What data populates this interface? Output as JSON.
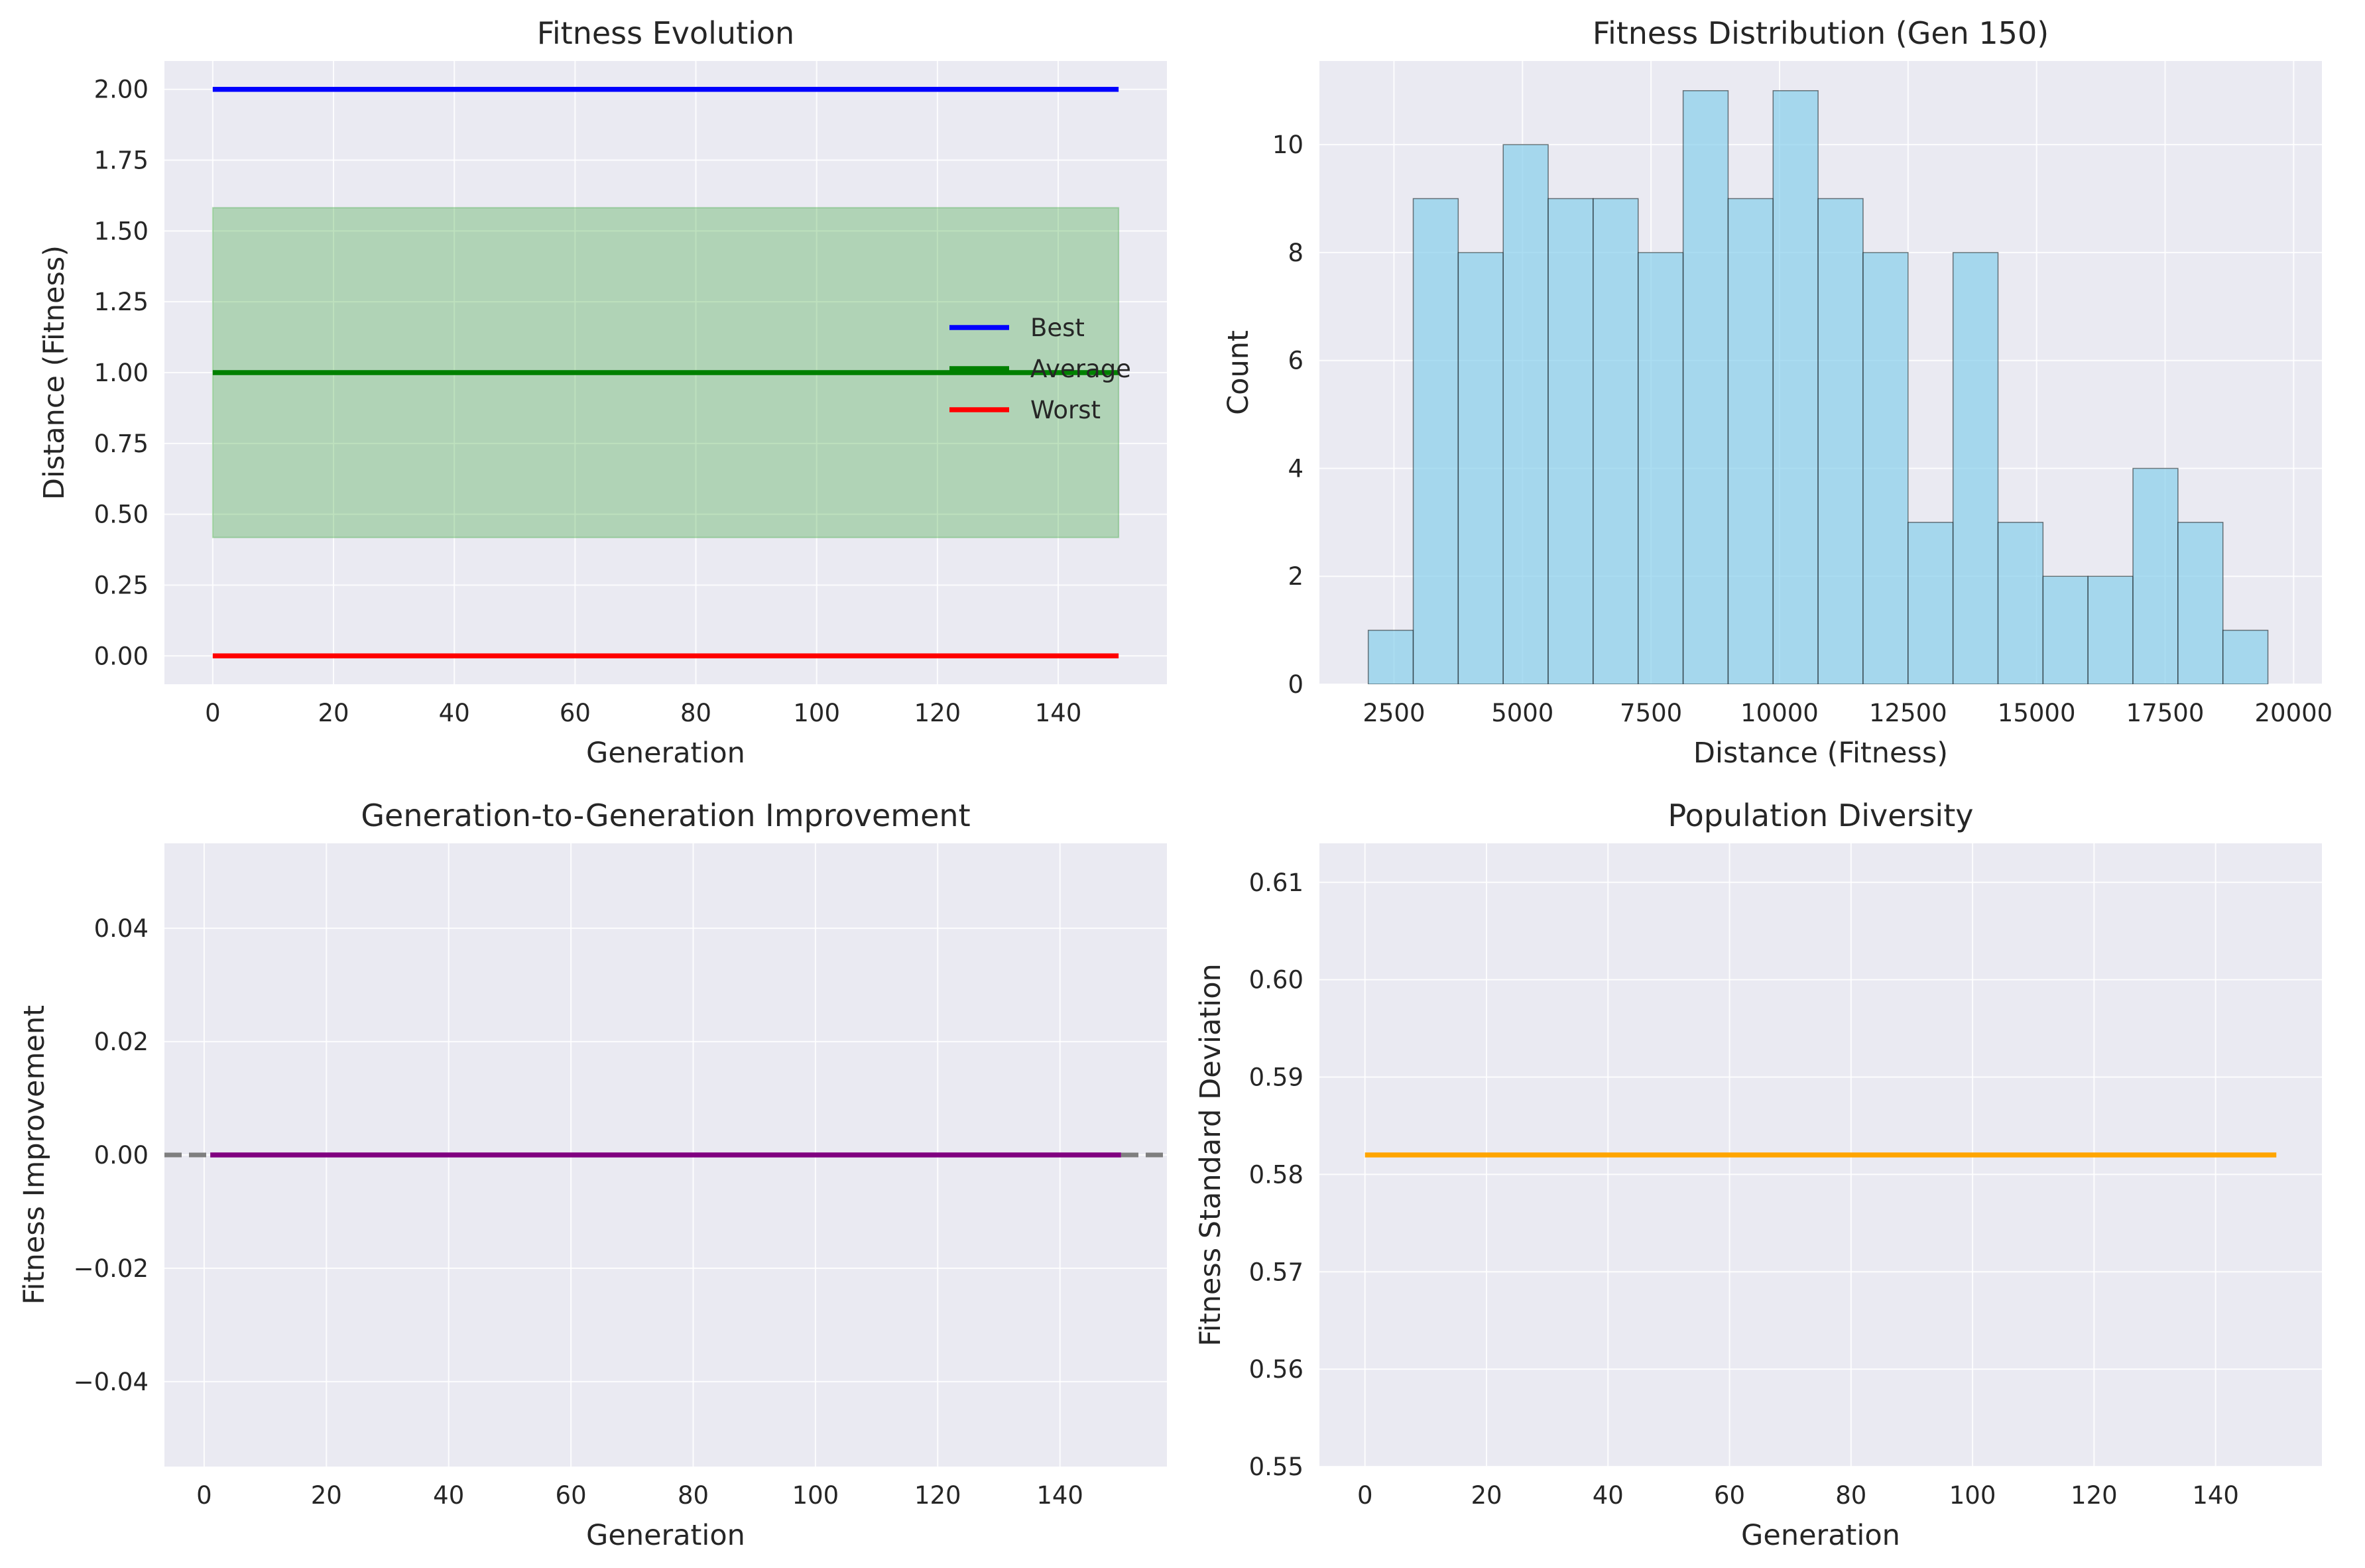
{
  "chart_data": [
    {
      "id": "fitness-evolution",
      "type": "line",
      "title": "Fitness Evolution",
      "xlabel": "Generation",
      "ylabel": "Distance (Fitness)",
      "xlim": [
        -8,
        158
      ],
      "ylim": [
        -0.1,
        2.1
      ],
      "xticks": [
        0,
        20,
        40,
        60,
        80,
        100,
        120,
        140
      ],
      "yticks": [
        0.0,
        0.25,
        0.5,
        0.75,
        1.0,
        1.25,
        1.5,
        1.75,
        2.0
      ],
      "ytick_labels": [
        "0.00",
        "0.25",
        "0.50",
        "0.75",
        "1.00",
        "1.25",
        "1.50",
        "1.75",
        "2.00"
      ],
      "grid": true,
      "legend_position": "center-right",
      "series": [
        {
          "name": "Best",
          "color": "#0000ff",
          "x": [
            0,
            150
          ],
          "y": [
            2.0,
            2.0
          ]
        },
        {
          "name": "Average",
          "color": "#008000",
          "x": [
            0,
            150
          ],
          "y": [
            1.0,
            1.0
          ]
        },
        {
          "name": "Worst",
          "color": "#ff0000",
          "x": [
            0,
            150
          ],
          "y": [
            0.0,
            0.0
          ]
        }
      ],
      "band": {
        "color": "#2ca02c",
        "x": [
          0,
          150
        ],
        "lower": 0.418,
        "upper": 1.582
      }
    },
    {
      "id": "fitness-distribution",
      "type": "bar",
      "title": "Fitness Distribution (Gen 150)",
      "xlabel": "Distance (Fitness)",
      "ylabel": "Count",
      "xlim": [
        1050,
        20550
      ],
      "ylim": [
        0,
        11.55
      ],
      "xticks": [
        2500,
        5000,
        7500,
        10000,
        12500,
        15000,
        17500,
        20000
      ],
      "yticks": [
        0,
        2,
        4,
        6,
        8,
        10
      ],
      "grid": true,
      "color": "#87ceeb",
      "bin_start": 2000,
      "bin_width": 875,
      "counts": [
        1,
        9,
        8,
        10,
        9,
        9,
        8,
        11,
        9,
        11,
        9,
        8,
        3,
        8,
        3,
        2,
        2,
        4,
        3,
        1
      ]
    },
    {
      "id": "generation-improvement",
      "type": "line",
      "title": "Generation-to-Generation Improvement",
      "xlabel": "Generation",
      "ylabel": "Fitness Improvement",
      "xlim": [
        -6.5,
        157.5
      ],
      "ylim": [
        -0.055,
        0.055
      ],
      "xticks": [
        0,
        20,
        40,
        60,
        80,
        100,
        120,
        140
      ],
      "yticks": [
        -0.04,
        -0.02,
        0.0,
        0.02,
        0.04
      ],
      "ytick_labels": [
        "−0.04",
        "−0.02",
        "0.00",
        "0.02",
        "0.04"
      ],
      "grid": true,
      "series": [
        {
          "color": "#800080",
          "x": [
            1,
            150
          ],
          "y": [
            0.0,
            0.0
          ]
        }
      ],
      "reference_line": {
        "y": 0.0,
        "color": "#7f7f7f",
        "style": "dashed"
      }
    },
    {
      "id": "population-diversity",
      "type": "line",
      "title": "Population Diversity",
      "xlabel": "Generation",
      "ylabel": "Fitness Standard Deviation",
      "xlim": [
        -7.5,
        157.5
      ],
      "ylim": [
        0.55,
        0.614
      ],
      "xticks": [
        0,
        20,
        40,
        60,
        80,
        100,
        120,
        140
      ],
      "yticks": [
        0.55,
        0.56,
        0.57,
        0.58,
        0.59,
        0.6,
        0.61
      ],
      "ytick_labels": [
        "0.55",
        "0.56",
        "0.57",
        "0.58",
        "0.59",
        "0.60",
        "0.61"
      ],
      "grid": true,
      "series": [
        {
          "color": "#ffa500",
          "x": [
            0,
            150
          ],
          "y": [
            0.582,
            0.582
          ]
        }
      ]
    }
  ]
}
